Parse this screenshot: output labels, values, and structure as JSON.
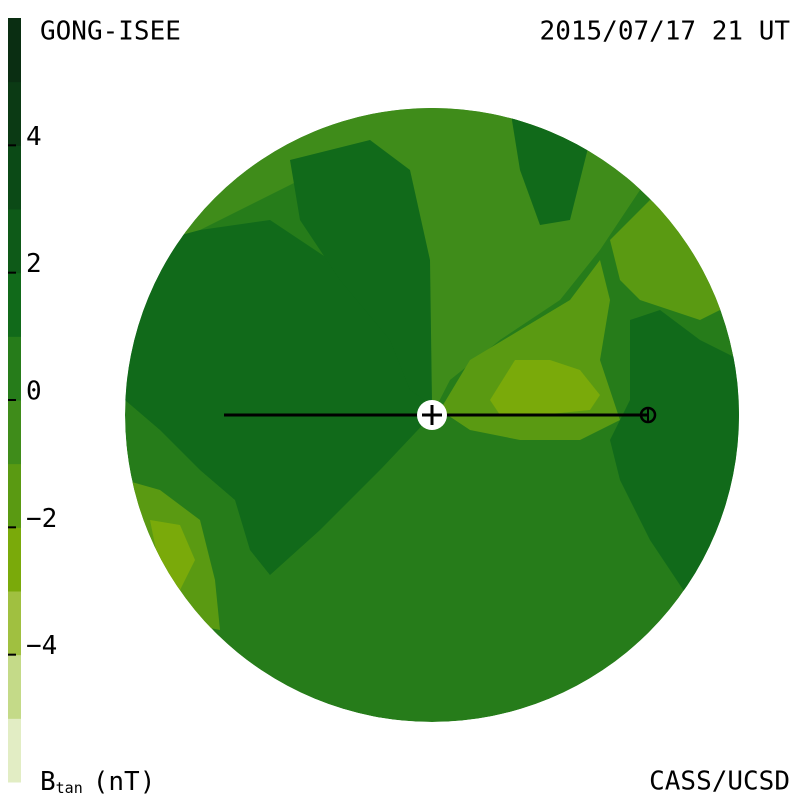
{
  "header": {
    "left": "GONG-ISEE",
    "right": "2015/07/17 21 UT"
  },
  "colorbar": {
    "label": "B",
    "label_sub": "tan",
    "unit": "(nT)",
    "lim": [
      -6,
      6
    ],
    "ticks": [
      4,
      2,
      {
        "value": 0,
        "label": "0"
      },
      {
        "value": -2,
        "label": "−2"
      },
      {
        "value": -4,
        "label": "−4"
      }
    ],
    "colors": [
      "#e2edc4",
      "#c4da88",
      "#a0c040",
      "#7aaa0a",
      "#5a9a12",
      "#3f8c1a",
      "#267c1a",
      "#116a1a",
      "#0e5a18",
      "#0b4a16",
      "#0b3a14",
      "#0a2e12"
    ]
  },
  "footer": {
    "right": "CASS/UCSD"
  }
}
